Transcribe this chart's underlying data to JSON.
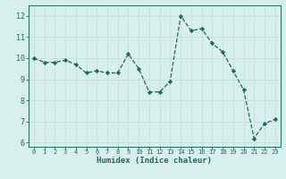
{
  "x": [
    0,
    1,
    2,
    3,
    4,
    5,
    6,
    7,
    8,
    9,
    10,
    11,
    12,
    13,
    14,
    15,
    16,
    17,
    18,
    19,
    20,
    21,
    22,
    23
  ],
  "y": [
    10.0,
    9.8,
    9.8,
    9.9,
    9.7,
    9.3,
    9.4,
    9.3,
    9.3,
    10.2,
    9.5,
    8.4,
    8.4,
    8.9,
    12.0,
    11.3,
    11.4,
    10.7,
    10.3,
    9.4,
    8.5,
    6.2,
    6.9,
    7.1
  ],
  "line_color": "#1a6b5e",
  "marker": "D",
  "marker_size": 2.2,
  "bg_color": "#d8f0ec",
  "grid_color": "#c8deda",
  "xlabel": "Humidex (Indice chaleur)",
  "xlabel_color": "#1a6b5e",
  "xlim": [
    -0.5,
    23.5
  ],
  "ylim": [
    5.8,
    12.5
  ],
  "yticks": [
    6,
    7,
    8,
    9,
    10,
    11,
    12
  ],
  "xticks": [
    0,
    1,
    2,
    3,
    4,
    5,
    6,
    7,
    8,
    9,
    10,
    11,
    12,
    13,
    14,
    15,
    16,
    17,
    18,
    19,
    20,
    21,
    22,
    23
  ],
  "tick_color": "#1a6b5e",
  "axes_color": "#1a6b5e",
  "xtick_fontsize": 5.0,
  "ytick_fontsize": 6.0,
  "xlabel_fontsize": 6.5
}
